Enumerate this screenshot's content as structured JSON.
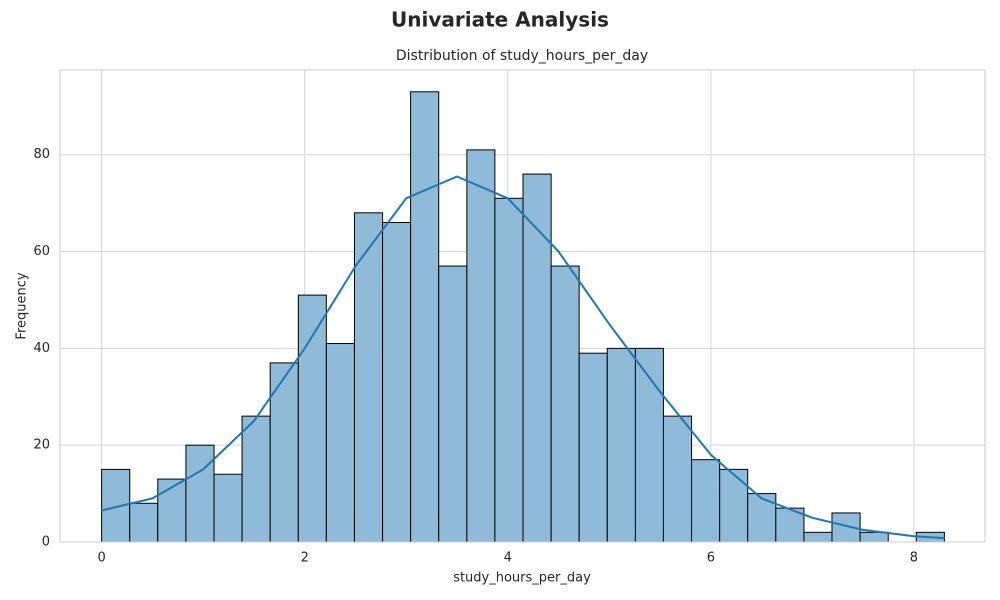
{
  "chart_data": {
    "type": "histogram",
    "suptitle": "Univariate Analysis",
    "title": "Distribution of study_hours_per_day",
    "xlabel": "study_hours_per_day",
    "ylabel": "Frequency",
    "bins": [
      0,
      0.277,
      0.553,
      0.83,
      1.107,
      1.383,
      1.66,
      1.937,
      2.213,
      2.49,
      2.767,
      3.043,
      3.32,
      3.597,
      3.873,
      4.15,
      4.427,
      4.703,
      4.98,
      5.257,
      5.533,
      5.81,
      6.087,
      6.363,
      6.64,
      6.917,
      7.193,
      7.47,
      7.747,
      8.023,
      8.3
    ],
    "counts": [
      15,
      8,
      13,
      20,
      14,
      26,
      37,
      51,
      41,
      68,
      66,
      93,
      57,
      81,
      71,
      76,
      57,
      39,
      40,
      40,
      26,
      17,
      15,
      10,
      7,
      2,
      6,
      2,
      0,
      2
    ],
    "color": "#8fbbd9",
    "kde": {
      "x": [
        0,
        0.5,
        1,
        1.5,
        2,
        2.5,
        3,
        3.5,
        4,
        4.5,
        5,
        5.5,
        6,
        6.5,
        7,
        7.5,
        8,
        8.3
      ],
      "values": [
        6.5,
        9,
        15,
        25,
        40,
        57,
        71,
        75.5,
        71,
        60,
        45,
        31,
        18,
        9,
        5,
        2.5,
        1.2,
        0.8
      ],
      "color": "#1f77b4"
    },
    "xlim": [
      -0.41,
      8.7
    ],
    "ylim": [
      0,
      97.5
    ],
    "xticks": [
      0,
      2,
      4,
      6,
      8
    ],
    "yticks": [
      0,
      20,
      40,
      60,
      80
    ],
    "grid": true
  }
}
